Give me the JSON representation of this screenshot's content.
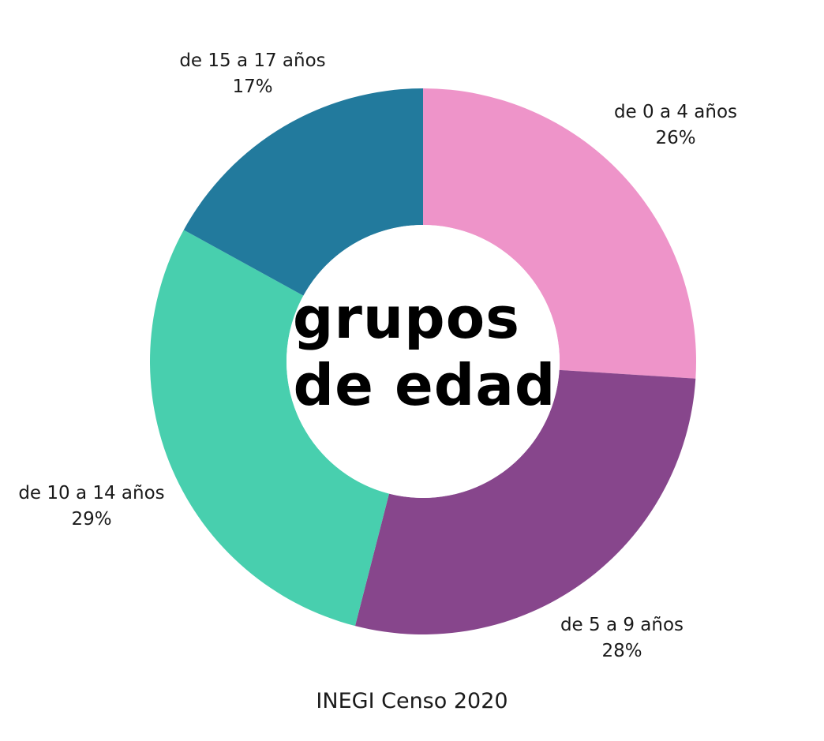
{
  "chart_data": {
    "type": "pie",
    "donut": true,
    "title": "grupos de edad",
    "title_lines": [
      "grupos",
      "de edad"
    ],
    "start_angle_deg": 0,
    "direction": "clockwise",
    "slices": [
      {
        "label": "de 0 a 4 años",
        "value": 26,
        "value_label": "26%",
        "color": "#ee94c9"
      },
      {
        "label": "de 5 a 9 años",
        "value": 28,
        "value_label": "28%",
        "color": "#87468c"
      },
      {
        "label": "de 10 a 14 años",
        "value": 29,
        "value_label": "29%",
        "color": "#48cfae"
      },
      {
        "label": "de 15 a 17 años",
        "value": 17,
        "value_label": "17%",
        "color": "#227a9d"
      }
    ],
    "source": "INEGI Censo 2020"
  }
}
